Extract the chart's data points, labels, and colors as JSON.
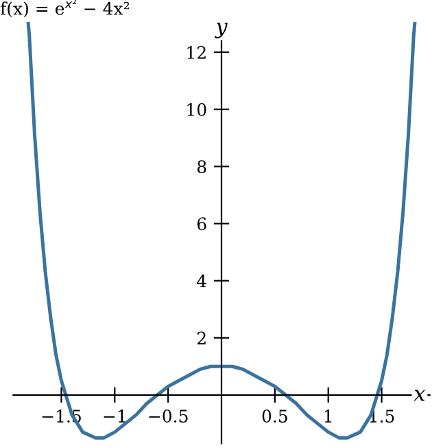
{
  "chart_data": {
    "type": "line",
    "annotations": [
      "f(x) = e$^{x²}$ − 4x²"
    ],
    "xlabel": "x",
    "ylabel": "y",
    "x": [
      -1.81,
      -1.8,
      -1.75,
      -1.7,
      -1.65,
      -1.6,
      -1.55,
      -1.5,
      -1.4,
      -1.3,
      -1.18,
      -1.1,
      -1.0,
      -0.9,
      -0.8,
      -0.7,
      -0.6,
      -0.5,
      -0.4,
      -0.3,
      -0.2,
      -0.1,
      0,
      0.1,
      0.2,
      0.3,
      0.4,
      0.5,
      0.6,
      0.7,
      0.8,
      0.9,
      1.0,
      1.1,
      1.18,
      1.3,
      1.4,
      1.5,
      1.55,
      1.6,
      1.65,
      1.7,
      1.75,
      1.8,
      1.81
    ],
    "series": [
      {
        "color": "#3a73a0",
        "values": [
          13.0,
          12.6,
          9.1,
          6.4,
          4.3,
          2.7,
          1.4,
          0.5,
          -0.7,
          -1.3,
          -1.5,
          -1.5,
          -1.3,
          -1.0,
          -0.7,
          -0.3,
          0.0,
          0.3,
          0.5,
          0.7,
          0.9,
          1.0,
          1.0,
          1.0,
          0.9,
          0.7,
          0.5,
          0.3,
          0.0,
          -0.3,
          -0.7,
          -1.0,
          -1.3,
          -1.5,
          -1.5,
          -1.3,
          -0.7,
          0.5,
          1.4,
          2.7,
          4.3,
          6.4,
          9.1,
          12.6,
          13.0
        ]
      }
    ],
    "xlim": [
      -1.95,
      1.95
    ],
    "ylim": [
      -1.7,
      13.2
    ],
    "xticks": [
      {
        "value": -1.5,
        "label": "−1.5"
      },
      {
        "value": -1,
        "label": "−1"
      },
      {
        "value": -0.5,
        "label": "−0.5"
      },
      0.5,
      1,
      1.5
    ],
    "yticks": [
      2,
      4,
      6,
      8,
      10,
      12
    ],
    "grid": false,
    "marker": "none",
    "line_style": "solid"
  }
}
